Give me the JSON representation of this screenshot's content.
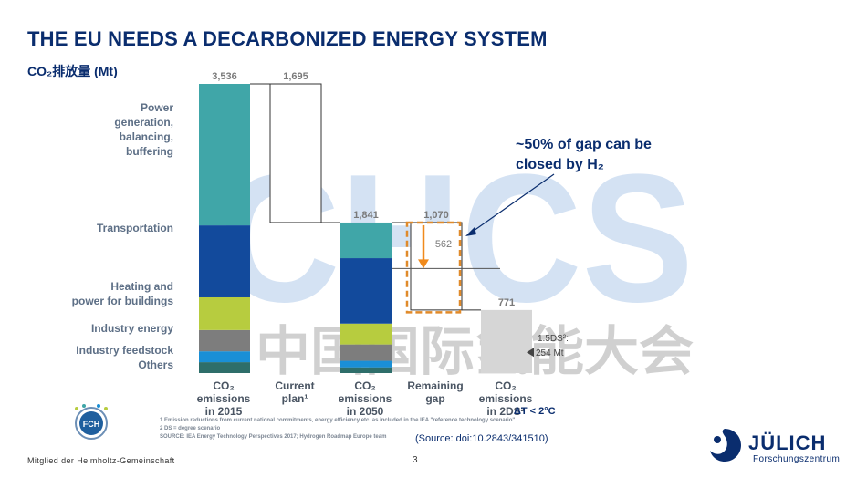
{
  "page": {
    "title": "THE EU NEEDS A DECARBONIZED ENERGY SYSTEM",
    "unit_label": "CO₂排放量 (Mt)",
    "gap_note": "~50% of gap can be\nclosed by H₂",
    "gap_value_label": "562",
    "target_label_1": "1.5DS²:",
    "target_label_2": "254 Mt",
    "delta_t": "ΔT < 2°C",
    "source": "(Source: doi:10.2843/341510)",
    "footnotes": [
      "1 Emission reductions from current national commitments, energy efficiency etc. as included in the IEA \"reference technology scenario\"",
      "2 DS = degree scenario",
      "SOURCE: IEA Energy Technology Perspectives 2017; Hydrogen Roadmap Europe team"
    ],
    "member": "Mitglied der Helmholtz-Gemeinschaft",
    "page_number": "3",
    "brand": "JÜLICH",
    "brand_sub": "Forschungszentrum",
    "fch_logo": "FCH",
    "watermark": "中国国际氢能大会",
    "watermark_logo": "CHCS"
  },
  "chart_data": {
    "type": "bar",
    "title": "",
    "ylabel": "CO₂排放量 (Mt)",
    "ylim": [
      0,
      3536
    ],
    "categories": [
      "CO₂\nemissions\nin 2015",
      "Current\nplan¹",
      "CO₂\nemissions\nin 2050",
      "Remaining\ngap",
      "CO₂\nemissions\nin 2DS²"
    ],
    "totals": [
      3536,
      1695,
      1841,
      1070,
      771
    ],
    "total_labels": [
      "3,536",
      "1,695",
      "1,841",
      "1,070",
      "771"
    ],
    "segments": [
      {
        "name": "Others",
        "color": "#2e6e6a"
      },
      {
        "name": "Industry feedstock",
        "color": "#1a8fd6"
      },
      {
        "name": "Industry energy",
        "color": "#7d7d7d"
      },
      {
        "name": "Heating and\npower for buildings",
        "color": "#b7cc3f"
      },
      {
        "name": "Transportation",
        "color": "#124a9c"
      },
      {
        "name": "Power\ngeneration,\nbalancing,\nbuffering",
        "color": "#40a6a8"
      }
    ],
    "stack_2015": [
      133,
      133,
      260,
      400,
      880,
      1730
    ],
    "stack_2050": [
      70,
      80,
      200,
      255,
      800,
      436
    ],
    "h2_closable_gap": 562,
    "target_1_5ds": 254
  }
}
